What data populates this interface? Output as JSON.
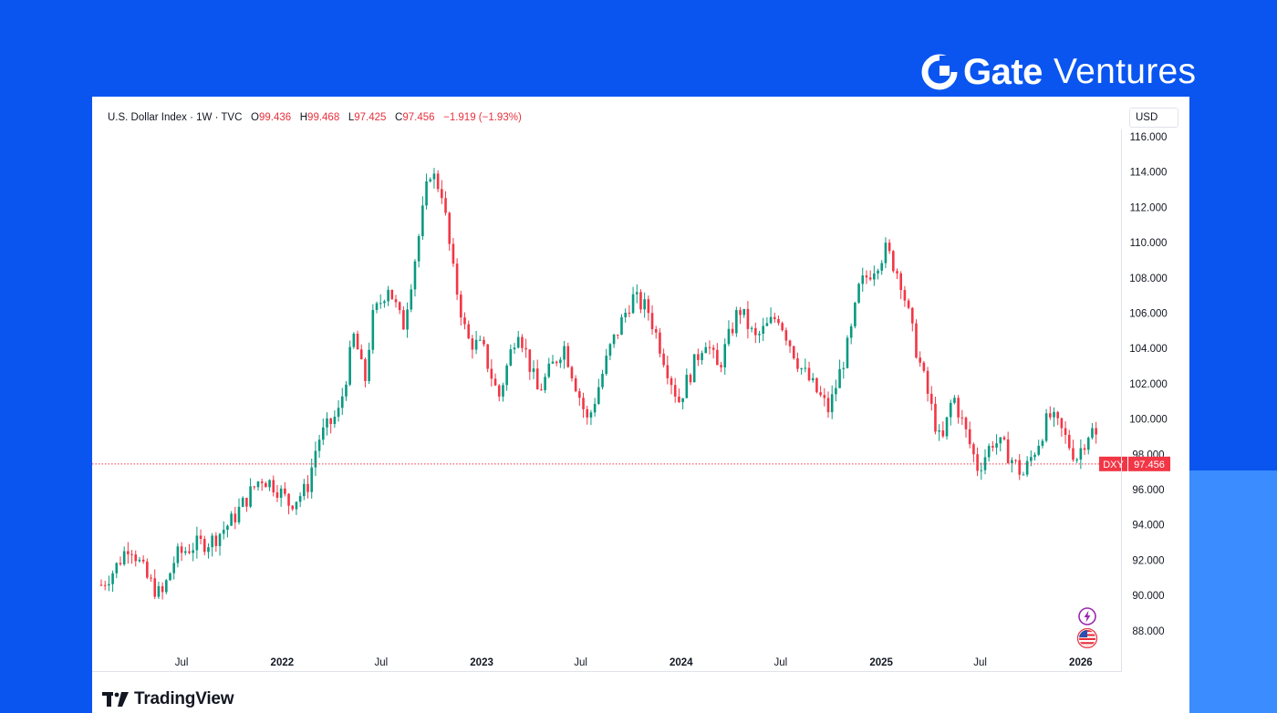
{
  "brand": {
    "name": "Gate",
    "suffix": "Ventures"
  },
  "header": {
    "symbol": "U.S. Dollar Index · 1W · TVC",
    "open_label": "O",
    "open": "99.436",
    "high_label": "H",
    "high": "99.468",
    "low_label": "L",
    "low": "97.425",
    "close_label": "C",
    "close": "97.456",
    "change": "−1.919 (−1.93%)"
  },
  "scale": {
    "currency": "USD"
  },
  "footer": {
    "logo_text": "TradingView"
  },
  "colors": {
    "up": "#089981",
    "down": "#f23645",
    "price_line": "#f23645"
  },
  "icons": [
    "lightning-event-icon",
    "us-flag-event-icon"
  ],
  "chart_data": {
    "type": "candlestick",
    "title": "",
    "xlabel": "",
    "ylabel": "",
    "ylim": [
      87,
      117.5
    ],
    "yticks": [
      "116.000",
      "114.000",
      "112.000",
      "110.000",
      "108.000",
      "106.000",
      "104.000",
      "102.000",
      "100.000",
      "98.000",
      "96.000",
      "94.000",
      "92.000",
      "90.000",
      "88.000"
    ],
    "xticks": [
      {
        "label": "Jul",
        "date": "2021-07-01",
        "bold": false
      },
      {
        "label": "2022",
        "date": "2022-01-01",
        "bold": true
      },
      {
        "label": "Jul",
        "date": "2022-07-01",
        "bold": false
      },
      {
        "label": "2023",
        "date": "2023-01-01",
        "bold": true
      },
      {
        "label": "Jul",
        "date": "2023-07-01",
        "bold": false
      },
      {
        "label": "2024",
        "date": "2024-01-01",
        "bold": true
      },
      {
        "label": "Jul",
        "date": "2024-07-01",
        "bold": false
      },
      {
        "label": "2025",
        "date": "2025-01-01",
        "bold": true
      },
      {
        "label": "Jul",
        "date": "2025-07-01",
        "bold": false
      },
      {
        "label": "2026",
        "date": "2026-01-01",
        "bold": true
      }
    ],
    "x_range": [
      "2021-02-04",
      "2026-03-19"
    ],
    "price_label": {
      "name": "DXY",
      "value": "97.456",
      "level": 97.456
    },
    "grid": false,
    "path": [
      [
        "2021-02-04",
        90.6
      ],
      [
        "2021-03-01",
        91.5
      ],
      [
        "2021-03-28",
        93.0
      ],
      [
        "2021-04-28",
        91.0
      ],
      [
        "2021-05-25",
        89.9
      ],
      [
        "2021-06-20",
        92.2
      ],
      [
        "2021-07-20",
        92.8
      ],
      [
        "2021-08-25",
        93.1
      ],
      [
        "2021-09-30",
        94.2
      ],
      [
        "2021-11-23",
        96.7
      ],
      [
        "2021-12-20",
        96.2
      ],
      [
        "2022-01-14",
        95.2
      ],
      [
        "2022-02-15",
        96.0
      ],
      [
        "2022-03-07",
        98.8
      ],
      [
        "2022-04-15",
        100.4
      ],
      [
        "2022-05-13",
        104.8
      ],
      [
        "2022-06-01",
        102.0
      ],
      [
        "2022-06-14",
        105.6
      ],
      [
        "2022-07-14",
        107.6
      ],
      [
        "2022-08-10",
        105.2
      ],
      [
        "2022-09-06",
        110.0
      ],
      [
        "2022-09-28",
        114.1
      ],
      [
        "2022-10-20",
        112.9
      ],
      [
        "2022-11-10",
        108.3
      ],
      [
        "2022-12-05",
        104.5
      ],
      [
        "2023-01-03",
        104.0
      ],
      [
        "2023-02-01",
        101.2
      ],
      [
        "2023-03-08",
        105.3
      ],
      [
        "2023-04-14",
        101.5
      ],
      [
        "2023-05-31",
        104.2
      ],
      [
        "2023-07-14",
        99.8
      ],
      [
        "2023-08-24",
        104.0
      ],
      [
        "2023-10-03",
        106.9
      ],
      [
        "2023-11-01",
        106.2
      ],
      [
        "2023-12-27",
        101.0
      ],
      [
        "2024-02-14",
        104.6
      ],
      [
        "2024-03-08",
        102.8
      ],
      [
        "2024-04-16",
        106.3
      ],
      [
        "2024-05-15",
        104.5
      ],
      [
        "2024-06-26",
        105.9
      ],
      [
        "2024-08-05",
        103.0
      ],
      [
        "2024-09-27",
        100.5
      ],
      [
        "2024-11-05",
        104.6
      ],
      [
        "2024-11-22",
        107.5
      ],
      [
        "2025-01-10",
        109.6
      ],
      [
        "2025-02-05",
        108.0
      ],
      [
        "2025-03-04",
        104.2
      ],
      [
        "2025-04-21",
        98.4
      ],
      [
        "2025-05-12",
        101.4
      ],
      [
        "2025-06-27",
        97.2
      ],
      [
        "2025-07-25",
        98.8
      ],
      [
        "2025-08-15",
        98.3
      ],
      [
        "2025-09-17",
        96.8
      ],
      [
        "2025-10-14",
        98.6
      ],
      [
        "2025-11-04",
        100.2
      ],
      [
        "2025-11-25",
        99.4
      ],
      [
        "2025-12-24",
        97.8
      ],
      [
        "2026-01-14",
        99.2
      ],
      [
        "2026-01-28",
        99.4
      ],
      [
        "2026-02-04",
        97.456
      ]
    ]
  }
}
